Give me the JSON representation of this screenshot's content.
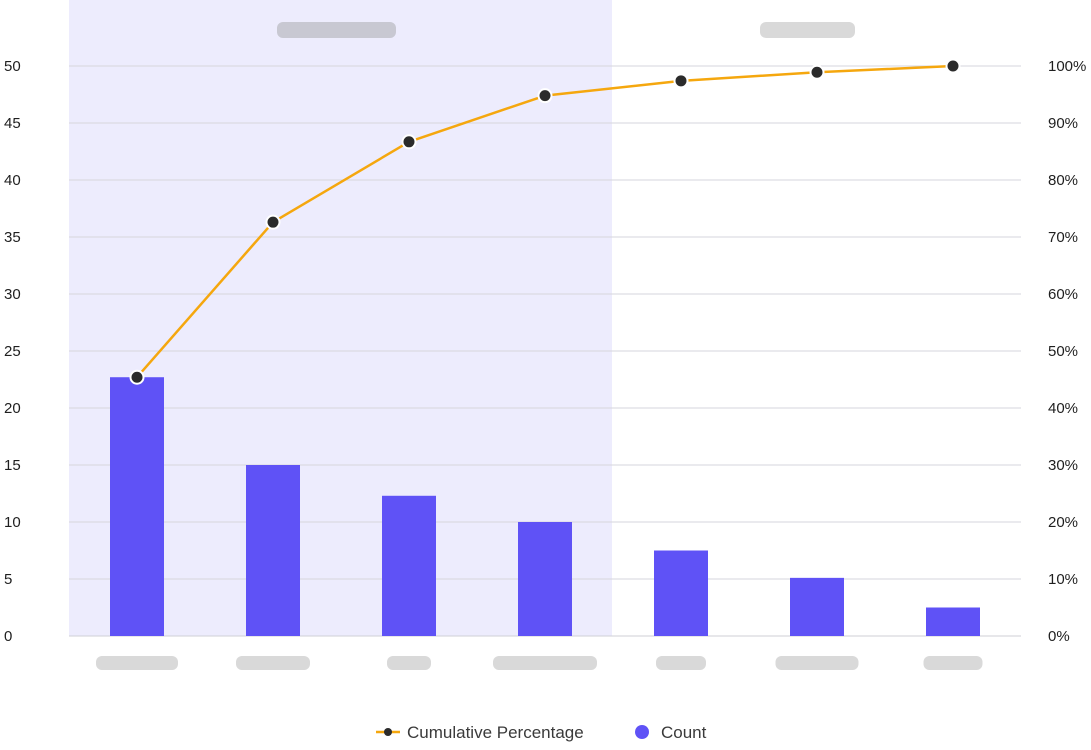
{
  "chart_data": {
    "type": "bar",
    "categories": [
      "",
      "",
      "",
      "",
      "",
      "",
      ""
    ],
    "series": [
      {
        "name": "Count",
        "kind": "bar",
        "axis": "left",
        "color": "#5f52f6",
        "values": [
          22.7,
          15,
          12.3,
          10,
          7.5,
          5.1,
          2.5
        ]
      },
      {
        "name": "Cumulative Percentage",
        "kind": "line",
        "axis": "right",
        "color": "#f5a70e",
        "marker_color": "#2b2b2b",
        "values": [
          45.4,
          72.6,
          86.7,
          94.8,
          97.4,
          98.9,
          100
        ]
      }
    ],
    "y_left": {
      "min": 0,
      "max": 50,
      "ticks": [
        "0",
        "5",
        "10",
        "15",
        "20",
        "25",
        "30",
        "35",
        "40",
        "45",
        "50"
      ]
    },
    "y_right": {
      "min": 0,
      "max": 100,
      "ticks": [
        "0%",
        "10%",
        "20%",
        "30%",
        "40%",
        "50%",
        "60%",
        "70%",
        "80%",
        "90%",
        "100%"
      ]
    },
    "highlight": {
      "from_category": 0,
      "to_category": 3,
      "color": "#edecfd"
    },
    "grid": true,
    "legend": {
      "position": "bottom",
      "items": [
        "Cumulative Percentage",
        "Count"
      ]
    },
    "placeholder_color": "#d9d9d9",
    "zone_label_color": "#c8c8d2"
  }
}
